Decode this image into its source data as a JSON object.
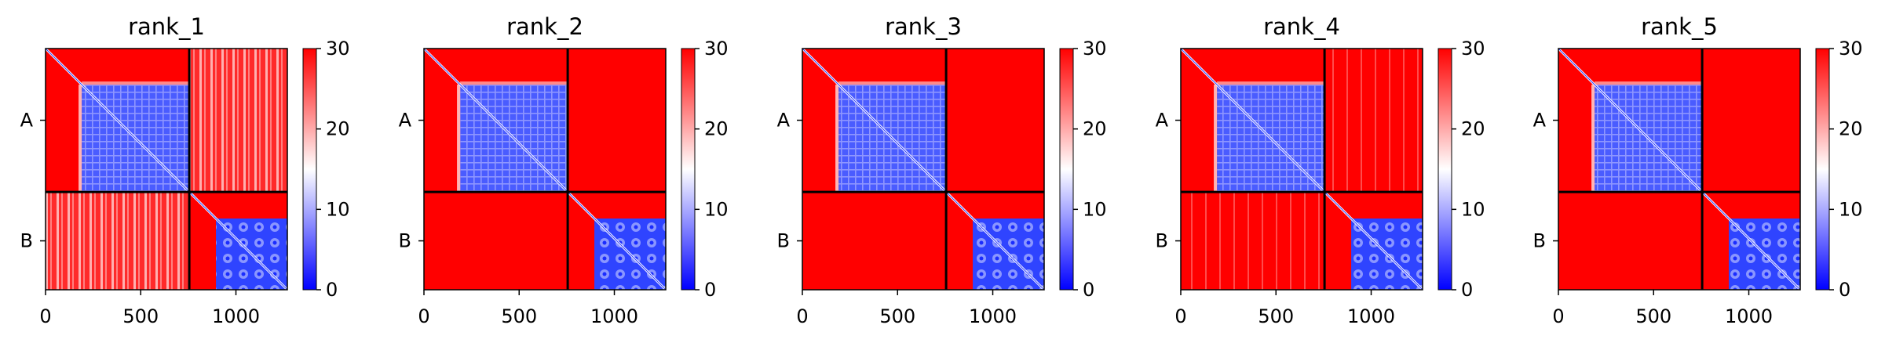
{
  "colors": {
    "low": "#0000ff",
    "mid": "#ffffff",
    "high": "#ff0000",
    "axis": "#000000"
  },
  "chart_data": [
    {
      "type": "heatmap",
      "title": "rank_1",
      "x_ticks": [
        0,
        500,
        1000
      ],
      "xlim": [
        0,
        1270
      ],
      "y_tick_labels": [
        "A",
        "B"
      ],
      "chain_boundary": 755,
      "chain_A_core_start": 190,
      "colorbar": {
        "range": [
          0,
          30
        ],
        "ticks": [
          0,
          10,
          20,
          30
        ],
        "colormap": "bwr"
      },
      "cross_chain_level": "partially elevated (light stripes)"
    },
    {
      "type": "heatmap",
      "title": "rank_2",
      "x_ticks": [
        0,
        500,
        1000
      ],
      "xlim": [
        0,
        1270
      ],
      "y_tick_labels": [
        "A",
        "B"
      ],
      "chain_boundary": 755,
      "chain_A_core_start": 190,
      "colorbar": {
        "range": [
          0,
          30
        ],
        "ticks": [
          0,
          10,
          20,
          30
        ],
        "colormap": "bwr"
      },
      "cross_chain_level": "high (saturated)"
    },
    {
      "type": "heatmap",
      "title": "rank_3",
      "x_ticks": [
        0,
        500,
        1000
      ],
      "xlim": [
        0,
        1270
      ],
      "y_tick_labels": [
        "A",
        "B"
      ],
      "chain_boundary": 755,
      "chain_A_core_start": 190,
      "colorbar": {
        "range": [
          0,
          30
        ],
        "ticks": [
          0,
          10,
          20,
          30
        ],
        "colormap": "bwr"
      },
      "cross_chain_level": "high (saturated)"
    },
    {
      "type": "heatmap",
      "title": "rank_4",
      "x_ticks": [
        0,
        500,
        1000
      ],
      "xlim": [
        0,
        1270
      ],
      "y_tick_labels": [
        "A",
        "B"
      ],
      "chain_boundary": 755,
      "chain_A_core_start": 190,
      "colorbar": {
        "range": [
          0,
          30
        ],
        "ticks": [
          0,
          10,
          20,
          30
        ],
        "colormap": "bwr"
      },
      "cross_chain_level": "high with faint stripes"
    },
    {
      "type": "heatmap",
      "title": "rank_5",
      "x_ticks": [
        0,
        500,
        1000
      ],
      "xlim": [
        0,
        1270
      ],
      "y_tick_labels": [
        "A",
        "B"
      ],
      "chain_boundary": 755,
      "chain_A_core_start": 190,
      "colorbar": {
        "range": [
          0,
          30
        ],
        "ticks": [
          0,
          10,
          20,
          30
        ],
        "colormap": "bwr"
      },
      "cross_chain_level": "high (saturated)"
    }
  ]
}
